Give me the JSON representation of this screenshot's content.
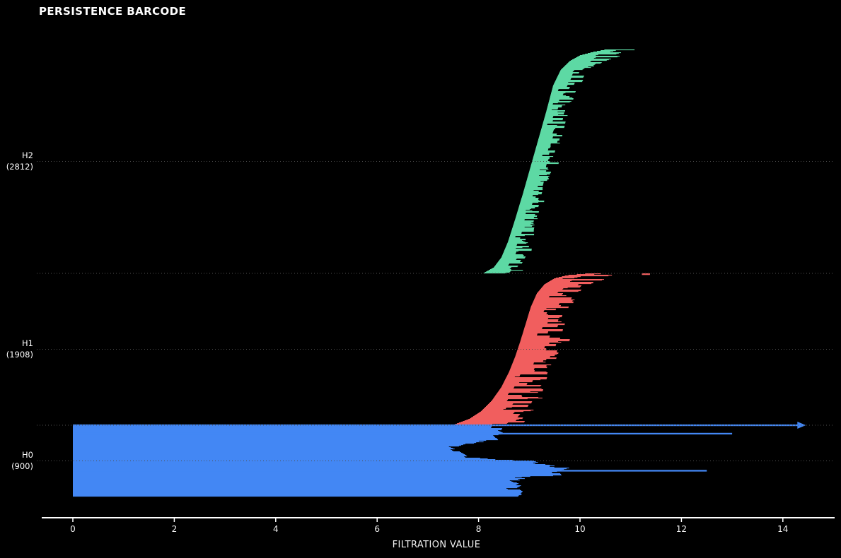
{
  "title": "PERSISTENCE BARCODE",
  "chart_data": {
    "type": "bar",
    "variant": "persistence-barcode",
    "title": "PERSISTENCE BARCODE",
    "xlabel": "FILTRATION VALUE",
    "x_ticks": [
      "0",
      "2",
      "4",
      "6",
      "8",
      "10",
      "12",
      "14"
    ],
    "x_tick_values": [
      0,
      2,
      4,
      6,
      8,
      10,
      12,
      14
    ],
    "x_range": [
      -0.62,
      15.0
    ],
    "background": "#000000",
    "grid": "dotted-horizontal-guides",
    "guide_color": "#4f4f4f",
    "axis_color": "#ffffff",
    "legend": "none",
    "groups": [
      {
        "name": "H2",
        "count": 2812,
        "count_label": "(2812)",
        "color": "#5dd9a4",
        "birth_range": [
          8.1,
          10.5
        ],
        "death_range": [
          8.3,
          11.2
        ],
        "birth_curve": [
          [
            0,
            10.48
          ],
          [
            0.01,
            10.25
          ],
          [
            0.025,
            10.0
          ],
          [
            0.05,
            9.8
          ],
          [
            0.09,
            9.62
          ],
          [
            0.16,
            9.47
          ],
          [
            0.28,
            9.33
          ],
          [
            0.4,
            9.18
          ],
          [
            0.52,
            9.03
          ],
          [
            0.64,
            8.88
          ],
          [
            0.76,
            8.72
          ],
          [
            0.86,
            8.58
          ],
          [
            0.93,
            8.45
          ],
          [
            0.975,
            8.3
          ],
          [
            1,
            8.1
          ]
        ],
        "death_curve": [
          [
            0,
            11.18
          ],
          [
            0.02,
            10.9
          ],
          [
            0.05,
            10.5
          ],
          [
            0.1,
            10.15
          ],
          [
            0.2,
            9.9
          ],
          [
            0.35,
            9.7
          ],
          [
            0.5,
            9.5
          ],
          [
            0.65,
            9.3
          ],
          [
            0.8,
            9.12
          ],
          [
            0.92,
            9.05
          ],
          [
            1,
            8.85
          ]
        ],
        "min_fill": 0.15,
        "spike_prob": 0.06,
        "spike_amp": 0.3,
        "specials": []
      },
      {
        "name": "H1",
        "count": 1908,
        "count_label": "(1908)",
        "color": "#f15e5e",
        "birth_range": [
          7.5,
          10.1
        ],
        "death_range": [
          8.8,
          11.4
        ],
        "birth_curve": [
          [
            0,
            10.1
          ],
          [
            0.01,
            9.75
          ],
          [
            0.03,
            9.5
          ],
          [
            0.07,
            9.3
          ],
          [
            0.13,
            9.15
          ],
          [
            0.22,
            9.03
          ],
          [
            0.33,
            8.93
          ],
          [
            0.45,
            8.82
          ],
          [
            0.55,
            8.72
          ],
          [
            0.65,
            8.6
          ],
          [
            0.75,
            8.45
          ],
          [
            0.84,
            8.26
          ],
          [
            0.91,
            8.05
          ],
          [
            0.96,
            7.82
          ],
          [
            1,
            7.5
          ]
        ],
        "death_curve": [
          [
            0,
            11.0
          ],
          [
            0.03,
            10.55
          ],
          [
            0.07,
            10.2
          ],
          [
            0.15,
            9.95
          ],
          [
            0.3,
            9.75
          ],
          [
            0.5,
            9.6
          ],
          [
            0.7,
            9.4
          ],
          [
            0.88,
            9.2
          ],
          [
            1,
            9.0
          ]
        ],
        "min_fill": 0.12,
        "spike_prob": 0.06,
        "spike_amp": 0.35,
        "specials": [
          {
            "t": 0.005,
            "birth": 11.22,
            "death": 11.38
          }
        ]
      },
      {
        "name": "H0",
        "count": 900,
        "count_label": "(900)",
        "color": "#4387f4",
        "flat_birth": 0,
        "birth_range": [
          0,
          0
        ],
        "death_range": [
          7.3,
          14.3
        ],
        "birth_curve": [
          [
            0,
            0
          ],
          [
            1,
            0
          ]
        ],
        "death_curve": [
          [
            0,
            8.35
          ],
          [
            0.06,
            8.3
          ],
          [
            0.1,
            8.42
          ],
          [
            0.14,
            8.2
          ],
          [
            0.2,
            8.28
          ],
          [
            0.24,
            7.7
          ],
          [
            0.3,
            7.45
          ],
          [
            0.34,
            7.6
          ],
          [
            0.4,
            7.75
          ],
          [
            0.45,
            7.85
          ],
          [
            0.48,
            8.3
          ],
          [
            0.5,
            9.0
          ],
          [
            0.55,
            9.2
          ],
          [
            0.6,
            9.65
          ],
          [
            0.63,
            9.5
          ],
          [
            0.66,
            9.45
          ],
          [
            0.7,
            9.5
          ],
          [
            0.73,
            9.0
          ],
          [
            0.76,
            8.6
          ],
          [
            0.82,
            8.8
          ],
          [
            0.88,
            8.65
          ],
          [
            0.94,
            8.8
          ],
          [
            1,
            8.72
          ]
        ],
        "jitter": 0.15,
        "min_fill": 1,
        "spike_prob": 0.05,
        "spike_amp": 0.25,
        "specials": [
          {
            "t": 0.0,
            "birth": 0,
            "death": 14.3,
            "infinite": true
          },
          {
            "t": 0.119,
            "birth": 0,
            "death": 13.0
          },
          {
            "t": 0.644,
            "birth": 0,
            "death": 12.5
          }
        ]
      }
    ]
  }
}
